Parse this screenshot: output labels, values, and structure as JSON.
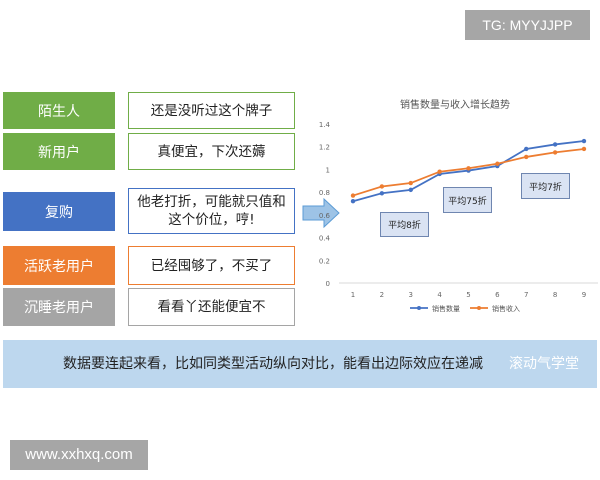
{
  "watermarks": {
    "top_right": "TG: MYYJJPP",
    "bottom_left": "www.xxhxq.com"
  },
  "segments": [
    {
      "label": "陌生人",
      "quote": "还是没听过这个牌子",
      "color": "#70ad47"
    },
    {
      "label": "新用户",
      "quote": "真便宜，下次还薅",
      "color": "#70ad47"
    },
    {
      "label": "复购",
      "quote": "他老打折，可能就只值和这个价位，哼!",
      "color": "#4472c4"
    },
    {
      "label": "活跃老用户",
      "quote": "已经囤够了，不买了",
      "color": "#ed7d31"
    },
    {
      "label": "沉睡老用户",
      "quote": "看看丫还能便宜不",
      "color": "#a5a5a5"
    }
  ],
  "banner": {
    "text": "数据要连起来看，比如同类型活动纵向对比，能看出边际效应在递减",
    "overlay": "滚动气学堂"
  },
  "chart_data": {
    "type": "line",
    "title": "销售数量与收入增长趋势",
    "x": [
      1,
      2,
      3,
      4,
      5,
      6,
      7,
      8,
      9
    ],
    "ylim": [
      0,
      1.4
    ],
    "yticks": [
      "0",
      "0.2",
      "0.4",
      "0.6",
      "0.8",
      "1",
      "1.2",
      "1.4"
    ],
    "grid": false,
    "legend": "bottom",
    "series": [
      {
        "name": "销售数量",
        "color": "#4472c4",
        "values": [
          0.72,
          0.79,
          0.82,
          0.96,
          0.99,
          1.03,
          1.18,
          1.22,
          1.25
        ]
      },
      {
        "name": "销售收入",
        "color": "#ed7d31",
        "values": [
          0.77,
          0.85,
          0.88,
          0.98,
          1.01,
          1.05,
          1.11,
          1.15,
          1.18
        ]
      }
    ],
    "annotations": [
      "平均8折",
      "平均75折",
      "平均7折"
    ]
  }
}
